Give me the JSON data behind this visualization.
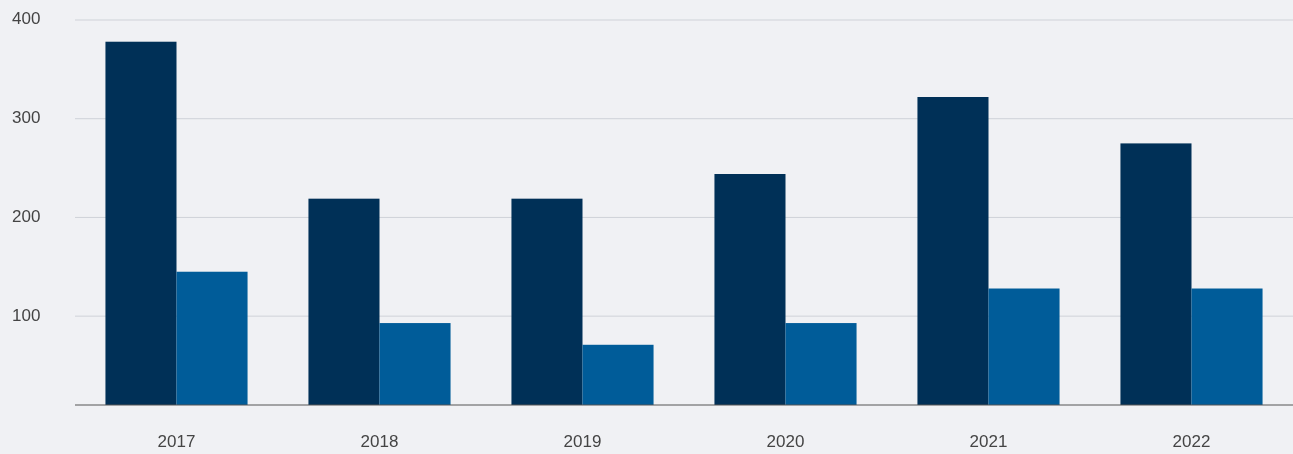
{
  "chart_data": {
    "type": "bar",
    "categories": [
      "2017",
      "2018",
      "2019",
      "2020",
      "2021",
      "2022"
    ],
    "series": [
      {
        "color": "#003057",
        "values": [
          378,
          219,
          219,
          244,
          322,
          275
        ]
      },
      {
        "color": "#005c99",
        "values": [
          145,
          93,
          71,
          93,
          128,
          128
        ]
      }
    ],
    "ylim": [
      10,
      400
    ],
    "yticks": [
      100,
      200,
      300,
      400
    ],
    "grid": "y"
  }
}
